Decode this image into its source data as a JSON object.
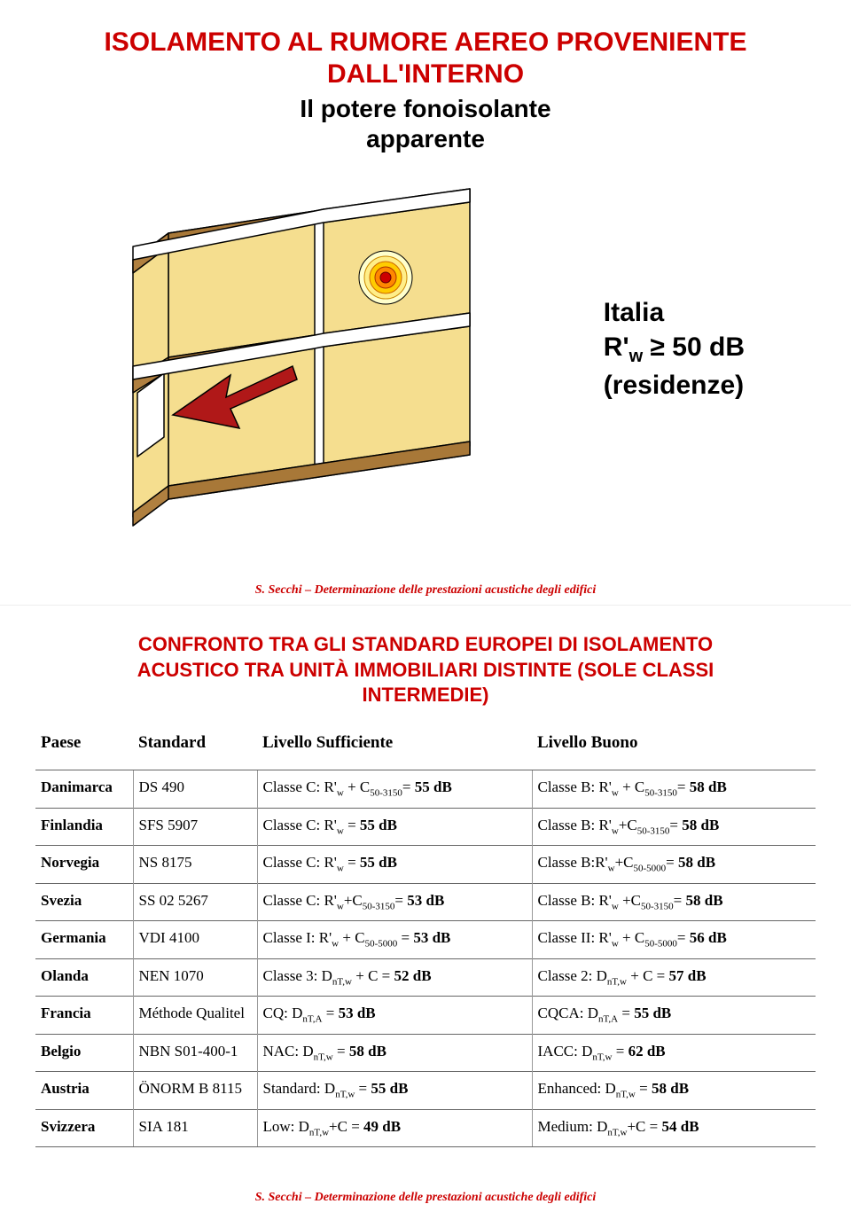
{
  "slide1": {
    "title_line1": "ISOLAMENTO AL RUMORE AEREO PROVENIENTE",
    "title_line2": "DALL'INTERNO",
    "subtitle_line1": "Il potere fonoisolante",
    "subtitle_line2": "apparente",
    "italia_label": "Italia",
    "italia_formula_pre": "R'",
    "italia_formula_sub": "w",
    "italia_formula_post": " ≥ 50 dB",
    "italia_residenze": "(residenze)",
    "footer": "S. Secchi – Determinazione delle prestazioni acustiche degli edifici",
    "diagram": {
      "wall_fill": "#f5de8f",
      "floor_fill": "#b08040",
      "edge_stroke": "#000000",
      "arrow_fill": "#b01818",
      "sound_rings": [
        "#cc0000",
        "#ff8800",
        "#ffcc00",
        "#ffee88",
        "#ffffcc"
      ]
    }
  },
  "slide2": {
    "title_line1": "CONFRONTO TRA GLI STANDARD EUROPEI DI ISOLAMENTO",
    "title_line2": "ACUSTICO TRA UNITÀ IMMOBILIARI DISTINTE (SOLE CLASSI",
    "title_line3": "INTERMEDIE)",
    "columns": [
      "Paese",
      "Standard",
      "Livello Sufficiente",
      "Livello Buono"
    ],
    "rows": [
      {
        "paese": "Danimarca",
        "standard": "DS 490",
        "suff": {
          "pre": "Classe C: R'",
          "sub1": "w",
          "mid": " + C",
          "sub2": "50-3150",
          "post": "= ",
          "bold": "55 dB"
        },
        "buono": {
          "pre": "Classe B: R'",
          "sub1": "w",
          "mid": " + C",
          "sub2": "50-3150",
          "post": "= ",
          "bold": "58 dB"
        }
      },
      {
        "paese": "Finlandia",
        "standard": "SFS 5907",
        "suff": {
          "pre": "Classe C: R'",
          "sub1": "w",
          "mid": "",
          "sub2": "",
          "post": " = ",
          "bold": "55 dB"
        },
        "buono": {
          "pre": "Classe B: R'",
          "sub1": "w",
          "mid": "+C",
          "sub2": "50-3150",
          "post": "= ",
          "bold": "58 dB"
        }
      },
      {
        "paese": "Norvegia",
        "standard": "NS 8175",
        "suff": {
          "pre": "Classe C: R'",
          "sub1": "w",
          "mid": "",
          "sub2": "",
          "post": " = ",
          "bold": "55 dB"
        },
        "buono": {
          "pre": "Classe B:R'",
          "sub1": "w",
          "mid": "+C",
          "sub2": "50-5000",
          "post": "= ",
          "bold": "58 dB"
        }
      },
      {
        "paese": "Svezia",
        "standard": "SS 02 5267",
        "suff": {
          "pre": "Classe C: R'",
          "sub1": "w",
          "mid": "+C",
          "sub2": "50-3150",
          "post": "= ",
          "bold": "53 dB"
        },
        "buono": {
          "pre": "Classe B: R'",
          "sub1": "w",
          "mid": " +C",
          "sub2": "50-3150",
          "post": "= ",
          "bold": "58 dB"
        }
      },
      {
        "paese": "Germania",
        "standard": "VDI 4100",
        "suff": {
          "pre": "Classe I: R'",
          "sub1": "w",
          "mid": " + C",
          "sub2": "50-5000",
          "post": " = ",
          "bold": "53 dB"
        },
        "buono": {
          "pre": "Classe II: R'",
          "sub1": "w",
          "mid": " + C",
          "sub2": "50-5000",
          "post": "= ",
          "bold": "56 dB"
        }
      },
      {
        "paese": "Olanda",
        "standard": "NEN 1070",
        "suff": {
          "pre": "Classe 3: D",
          "sub1": "nT,w",
          "mid": " + C",
          "sub2": "",
          "post": " = ",
          "bold": "52 dB"
        },
        "buono": {
          "pre": "Classe 2: D",
          "sub1": "nT,w",
          "mid": " + C",
          "sub2": "",
          "post": " = ",
          "bold": "57 dB"
        }
      },
      {
        "paese": "Francia",
        "standard": "Méthode Qualitel",
        "suff": {
          "pre": "CQ: D",
          "sub1": "nT,A",
          "mid": "",
          "sub2": "",
          "post": " = ",
          "bold": "53 dB"
        },
        "buono": {
          "pre": "CQCA: D",
          "sub1": "nT,A",
          "mid": "",
          "sub2": "",
          "post": " = ",
          "bold": "55 dB"
        }
      },
      {
        "paese": "Belgio",
        "standard": "NBN S01-400-1",
        "suff": {
          "pre": "NAC: D",
          "sub1": "nT,w",
          "mid": "",
          "sub2": "",
          "post": " = ",
          "bold": "58 dB"
        },
        "buono": {
          "pre": "IACC: D",
          "sub1": "nT,w",
          "mid": "",
          "sub2": "",
          "post": " = ",
          "bold": "62 dB"
        }
      },
      {
        "paese": "Austria",
        "standard": "ÖNORM B 8115",
        "suff": {
          "pre": "Standard: D",
          "sub1": "nT,w",
          "mid": "",
          "sub2": "",
          "post": " = ",
          "bold": "55 dB"
        },
        "buono": {
          "pre": "Enhanced: D",
          "sub1": "nT,w",
          "mid": "",
          "sub2": "",
          "post": " = ",
          "bold": "58 dB"
        }
      },
      {
        "paese": "Svizzera",
        "standard": "SIA 181",
        "suff": {
          "pre": "Low: D",
          "sub1": "nT,w",
          "mid": "+C",
          "sub2": "",
          "post": " = ",
          "bold": "49 dB"
        },
        "buono": {
          "pre": "Medium: D",
          "sub1": "nT,w",
          "mid": "+C",
          "sub2": "",
          "post": " = ",
          "bold": "54 dB"
        }
      }
    ],
    "footer": "S. Secchi – Determinazione delle prestazioni acustiche degli edifici"
  }
}
